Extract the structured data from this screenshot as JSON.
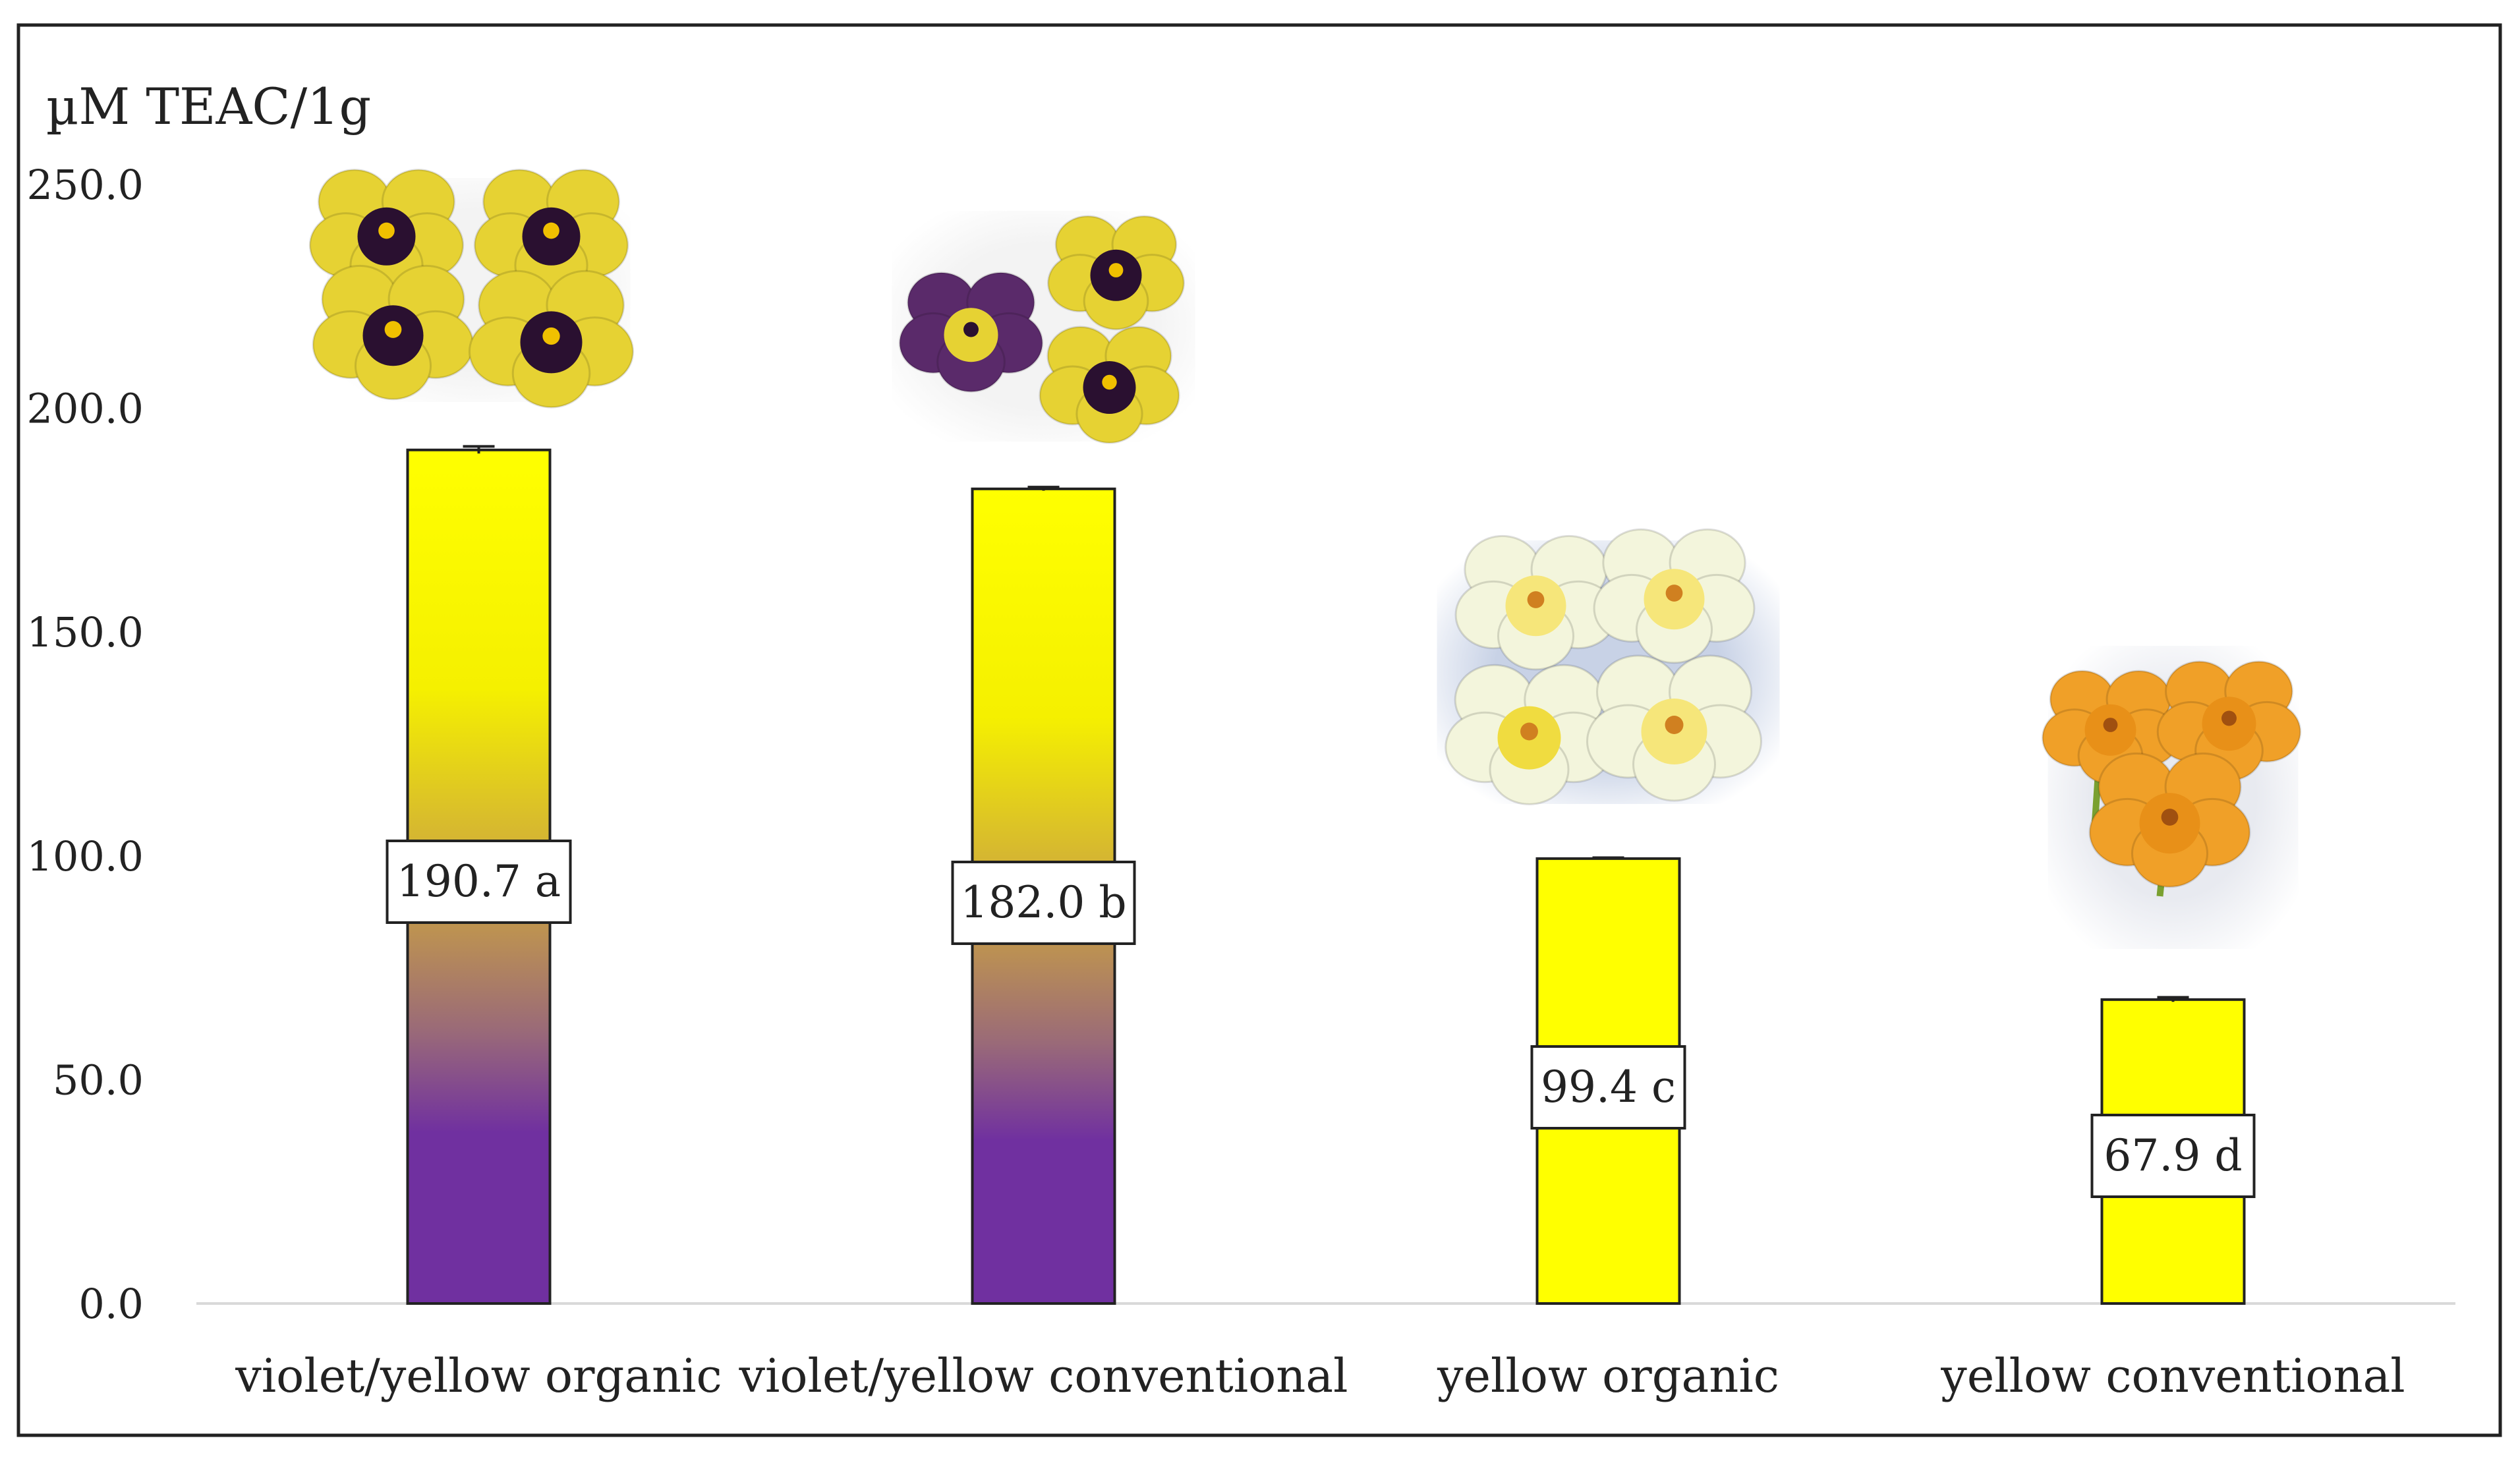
{
  "chart_data": {
    "type": "bar",
    "title": "",
    "ylabel": "µM TEAC/1g",
    "xlabel": "",
    "ylim": [
      0,
      250
    ],
    "yticks": [
      0,
      50,
      100,
      150,
      200,
      250
    ],
    "ytick_labels": [
      "0.0",
      "50.0",
      "100.0",
      "150.0",
      "200.0",
      "250.0"
    ],
    "categories": [
      "violet/yellow organic",
      "violet/yellow conventional",
      "yellow organic",
      "yellow conventional"
    ],
    "values": [
      190.7,
      182.0,
      99.4,
      67.9
    ],
    "error": [
      0.8,
      0.4,
      0.2,
      0.5
    ],
    "data_labels": [
      "190.7 a",
      "182.0 b",
      "99.4 c",
      "67.9 d"
    ],
    "bar_fill": [
      "violet-yellow-gradient",
      "violet-yellow-gradient",
      "yellow",
      "yellow"
    ],
    "grid": false,
    "legend": "none",
    "colors": {
      "yellow": "#ffff00",
      "violet": "#7030a0",
      "axis": "#d9d9d9",
      "frame": "#222222"
    },
    "flower_images": [
      "violet/yellow pansies",
      "violet/yellow pansies",
      "white/yellow pansies",
      "orange pansies"
    ]
  }
}
